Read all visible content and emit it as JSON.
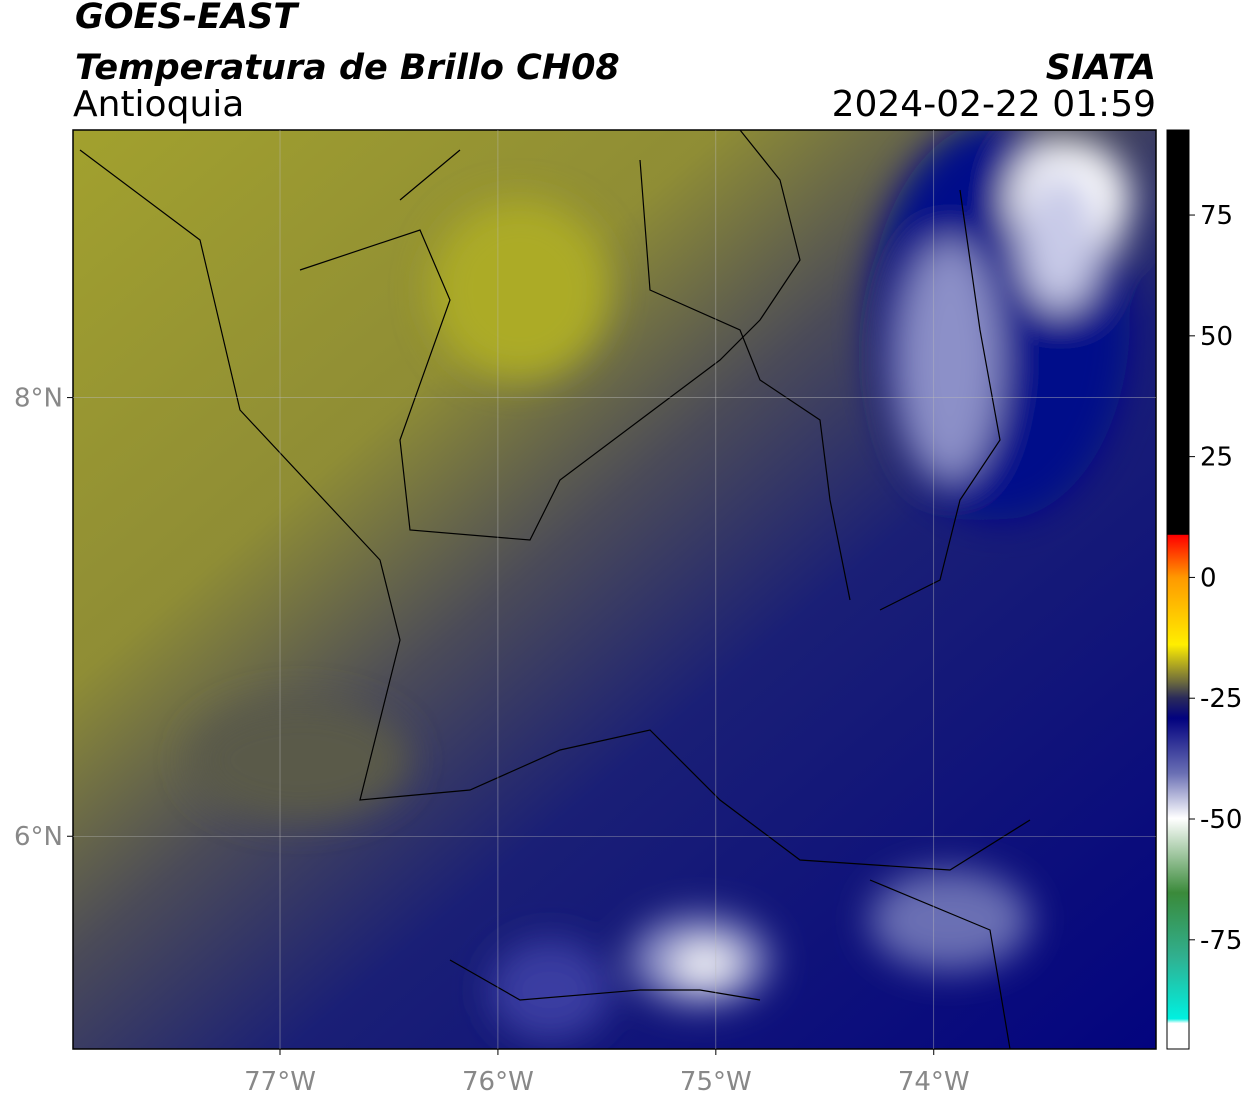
{
  "header": {
    "title": "GOES-EAST",
    "subtitle": "Temperatura de Brillo CH08",
    "region": "Antioquia",
    "source": "SIATA",
    "datetime": "2024-02-22 01:59"
  },
  "map": {
    "lonlim": [
      -77.95,
      -72.98
    ],
    "latlim": [
      5.03,
      9.22
    ],
    "lon_ticks": [
      {
        "value": -77,
        "label": "77°W"
      },
      {
        "value": -76,
        "label": "76°W"
      },
      {
        "value": -75,
        "label": "75°W"
      },
      {
        "value": -74,
        "label": "74°W"
      }
    ],
    "lat_ticks": [
      {
        "value": 8,
        "label": "8°N"
      },
      {
        "value": 6,
        "label": "6°N"
      }
    ],
    "grid": true
  },
  "colorbar": {
    "lim": [
      -97.6,
      92.6
    ],
    "ticks": [
      75,
      50,
      25,
      0,
      -25,
      -50,
      -75
    ]
  }
}
